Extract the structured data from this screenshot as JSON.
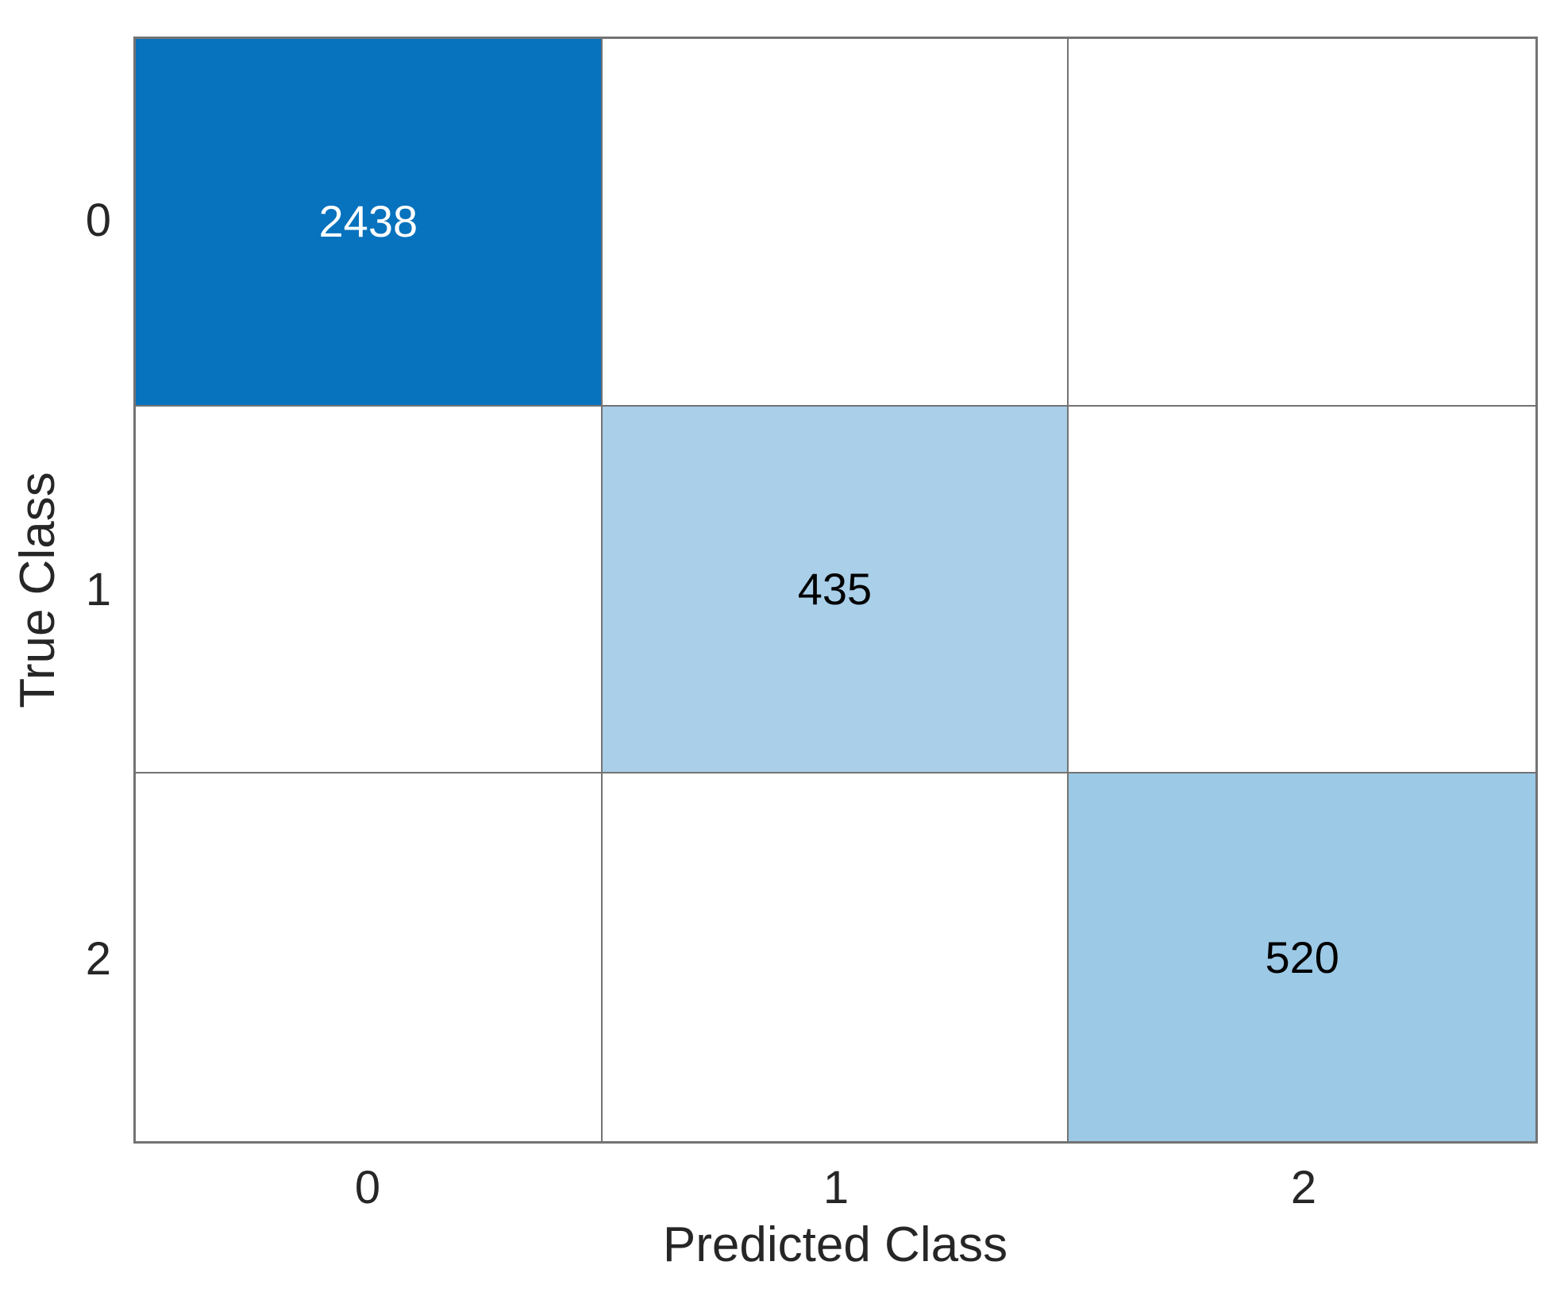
{
  "chart_data": {
    "type": "heatmap",
    "subtype": "confusion-matrix",
    "title": "",
    "xlabel": "Predicted Class",
    "ylabel": "True Class",
    "x_ticks": [
      "0",
      "1",
      "2"
    ],
    "y_ticks": [
      "0",
      "1",
      "2"
    ],
    "categories": [
      "0",
      "1",
      "2"
    ],
    "matrix": [
      [
        2438,
        0,
        0
      ],
      [
        0,
        435,
        0
      ],
      [
        0,
        0,
        520
      ]
    ],
    "cells": [
      {
        "row": 0,
        "col": 0,
        "value": "2438",
        "bg": "#0772BD",
        "fg": "#FFFFFF"
      },
      {
        "row": 1,
        "col": 1,
        "value": "435",
        "bg": "#A9CFE9",
        "fg": "#000000"
      },
      {
        "row": 2,
        "col": 2,
        "value": "520",
        "bg": "#9CC9E6",
        "fg": "#000000"
      }
    ],
    "colors": {
      "diagonal_max": "#0772BD",
      "diagonal_light": "#A9CFE9",
      "empty_cell": "#FFFFFF",
      "grid_line": "#737373",
      "axis_text": "#262626"
    },
    "grid": "on",
    "legend": "none"
  }
}
